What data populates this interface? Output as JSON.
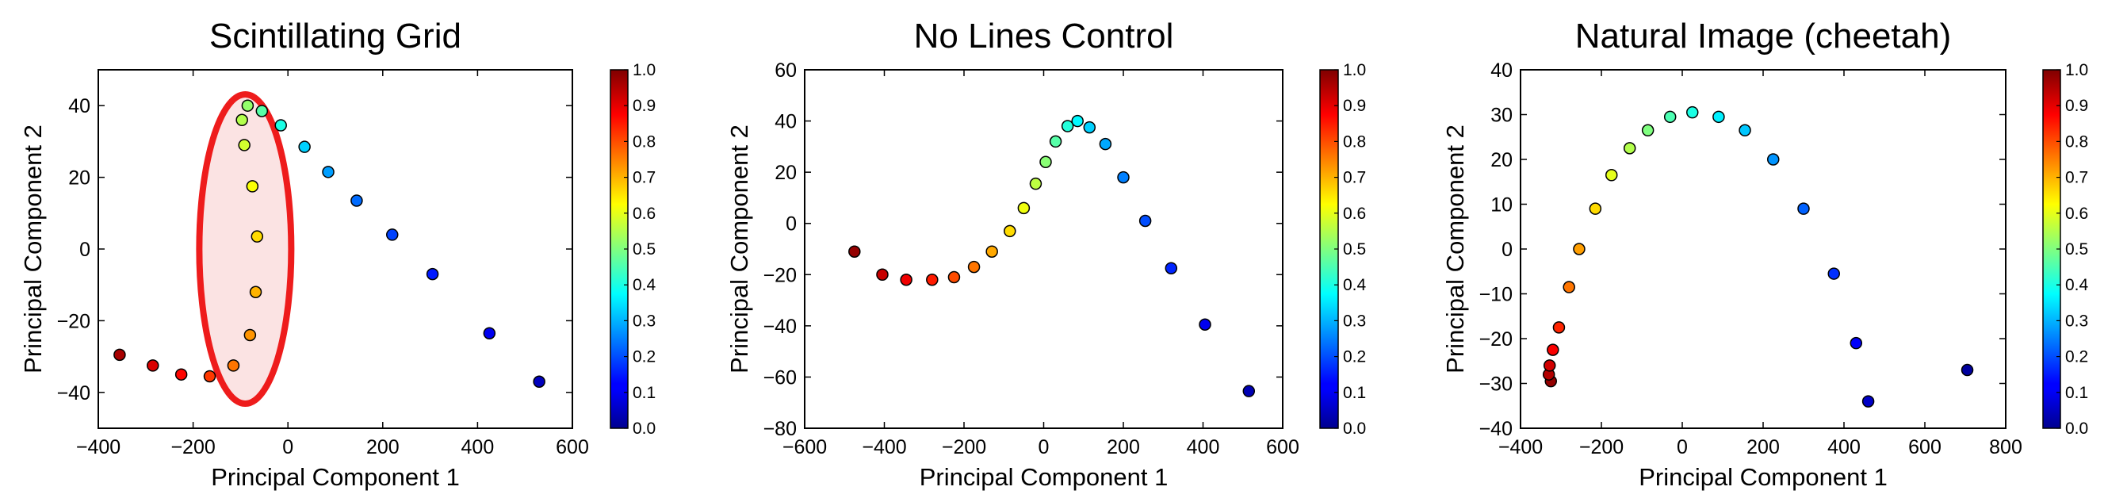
{
  "colormap": "jet",
  "chart_data": [
    {
      "type": "scatter",
      "title": "Scintillating Grid",
      "xlabel": "Principal Component 1",
      "ylabel": "Principal Component 2",
      "xlim": [
        -400,
        600
      ],
      "ylim": [
        -50,
        50
      ],
      "xticks": [
        -400,
        -200,
        0,
        200,
        400,
        600
      ],
      "yticks": [
        -40,
        -20,
        0,
        20,
        40
      ],
      "xtick_labels": [
        "−400",
        "−200",
        "0",
        "200",
        "400",
        "600"
      ],
      "ytick_labels": [
        "−40",
        "−20",
        "0",
        "20",
        "40"
      ],
      "colorbar": {
        "ticks": [
          "0.0",
          "0.1",
          "0.2",
          "0.3",
          "0.4",
          "0.5",
          "0.6",
          "0.7",
          "0.8",
          "0.9",
          "1.0"
        ]
      },
      "highlight_ellipse": {
        "center": [
          -90,
          0
        ],
        "color": "#ee1c1c",
        "fill": "#fbe3e3"
      },
      "points": [
        {
          "x": -355,
          "y": -29.5,
          "c": 0.96
        },
        {
          "x": -285,
          "y": -32.5,
          "c": 0.91
        },
        {
          "x": -225,
          "y": -35,
          "c": 0.87
        },
        {
          "x": -165,
          "y": -35.5,
          "c": 0.82
        },
        {
          "x": -115,
          "y": -32.5,
          "c": 0.76
        },
        {
          "x": -80,
          "y": -24,
          "c": 0.73
        },
        {
          "x": -68,
          "y": -12,
          "c": 0.7
        },
        {
          "x": -65,
          "y": 3.5,
          "c": 0.66
        },
        {
          "x": -75,
          "y": 17.5,
          "c": 0.62
        },
        {
          "x": -92,
          "y": 29,
          "c": 0.58
        },
        {
          "x": -97,
          "y": 36,
          "c": 0.55
        },
        {
          "x": -85,
          "y": 40,
          "c": 0.52
        },
        {
          "x": -55,
          "y": 38.5,
          "c": 0.46
        },
        {
          "x": -15,
          "y": 34.5,
          "c": 0.4
        },
        {
          "x": 35,
          "y": 28.5,
          "c": 0.33
        },
        {
          "x": 85,
          "y": 21.5,
          "c": 0.28
        },
        {
          "x": 145,
          "y": 13.5,
          "c": 0.23
        },
        {
          "x": 220,
          "y": 4,
          "c": 0.19
        },
        {
          "x": 305,
          "y": -7,
          "c": 0.15
        },
        {
          "x": 425,
          "y": -23.5,
          "c": 0.11
        },
        {
          "x": 530,
          "y": -37,
          "c": 0.06
        }
      ]
    },
    {
      "type": "scatter",
      "title": "No Lines Control",
      "xlabel": "Principal Component 1",
      "ylabel": "Principal Component 2",
      "xlim": [
        -600,
        600
      ],
      "ylim": [
        -80,
        60
      ],
      "xticks": [
        -600,
        -400,
        -200,
        0,
        200,
        400,
        600
      ],
      "yticks": [
        -80,
        -60,
        -40,
        -20,
        0,
        20,
        40,
        60
      ],
      "xtick_labels": [
        "−600",
        "−400",
        "−200",
        "0",
        "200",
        "400",
        "600"
      ],
      "ytick_labels": [
        "−80",
        "−60",
        "−40",
        "−20",
        "0",
        "20",
        "40",
        "60"
      ],
      "colorbar": {
        "ticks": [
          "0.0",
          "0.1",
          "0.2",
          "0.3",
          "0.4",
          "0.5",
          "0.6",
          "0.7",
          "0.8",
          "0.9",
          "1.0"
        ]
      },
      "points": [
        {
          "x": -475,
          "y": -11,
          "c": 0.98
        },
        {
          "x": -405,
          "y": -20,
          "c": 0.93
        },
        {
          "x": -345,
          "y": -22,
          "c": 0.89
        },
        {
          "x": -280,
          "y": -22,
          "c": 0.85
        },
        {
          "x": -225,
          "y": -21,
          "c": 0.8
        },
        {
          "x": -175,
          "y": -17,
          "c": 0.76
        },
        {
          "x": -130,
          "y": -11,
          "c": 0.71
        },
        {
          "x": -85,
          "y": -3,
          "c": 0.66
        },
        {
          "x": -50,
          "y": 6,
          "c": 0.61
        },
        {
          "x": -20,
          "y": 15.5,
          "c": 0.56
        },
        {
          "x": 5,
          "y": 24,
          "c": 0.51
        },
        {
          "x": 30,
          "y": 32,
          "c": 0.46
        },
        {
          "x": 60,
          "y": 38,
          "c": 0.41
        },
        {
          "x": 85,
          "y": 40,
          "c": 0.37
        },
        {
          "x": 115,
          "y": 37.5,
          "c": 0.33
        },
        {
          "x": 155,
          "y": 31,
          "c": 0.29
        },
        {
          "x": 200,
          "y": 18,
          "c": 0.25
        },
        {
          "x": 255,
          "y": 1,
          "c": 0.2
        },
        {
          "x": 320,
          "y": -17.5,
          "c": 0.16
        },
        {
          "x": 405,
          "y": -39.5,
          "c": 0.11
        },
        {
          "x": 515,
          "y": -65.5,
          "c": 0.05
        }
      ]
    },
    {
      "type": "scatter",
      "title": "Natural Image (cheetah)",
      "xlabel": "Principal Component 1",
      "ylabel": "Principal Component 2",
      "xlim": [
        -400,
        800
      ],
      "ylim": [
        -40,
        40
      ],
      "xticks": [
        -400,
        -200,
        0,
        200,
        400,
        600,
        800
      ],
      "yticks": [
        -40,
        -30,
        -20,
        -10,
        0,
        10,
        20,
        30,
        40
      ],
      "xtick_labels": [
        "−400",
        "−200",
        "0",
        "200",
        "400",
        "600",
        "800"
      ],
      "ytick_labels": [
        "−40",
        "−30",
        "−20",
        "−10",
        "0",
        "10",
        "20",
        "30",
        "40"
      ],
      "colorbar": {
        "ticks": [
          "0.0",
          "0.1",
          "0.2",
          "0.3",
          "0.4",
          "0.5",
          "0.6",
          "0.7",
          "0.8",
          "0.9",
          "1.0"
        ]
      },
      "points": [
        {
          "x": -325,
          "y": -29.5,
          "c": 0.98
        },
        {
          "x": -330,
          "y": -28,
          "c": 0.95
        },
        {
          "x": -328,
          "y": -26,
          "c": 0.92
        },
        {
          "x": -320,
          "y": -22.5,
          "c": 0.88
        },
        {
          "x": -305,
          "y": -17.5,
          "c": 0.84
        },
        {
          "x": -280,
          "y": -8.5,
          "c": 0.76
        },
        {
          "x": -255,
          "y": 0,
          "c": 0.72
        },
        {
          "x": -215,
          "y": 9,
          "c": 0.66
        },
        {
          "x": -175,
          "y": 16.5,
          "c": 0.6
        },
        {
          "x": -130,
          "y": 22.5,
          "c": 0.55
        },
        {
          "x": -85,
          "y": 26.5,
          "c": 0.5
        },
        {
          "x": -30,
          "y": 29.5,
          "c": 0.45
        },
        {
          "x": 25,
          "y": 30.5,
          "c": 0.4
        },
        {
          "x": 90,
          "y": 29.5,
          "c": 0.36
        },
        {
          "x": 155,
          "y": 26.5,
          "c": 0.32
        },
        {
          "x": 225,
          "y": 20,
          "c": 0.27
        },
        {
          "x": 300,
          "y": 9,
          "c": 0.22
        },
        {
          "x": 375,
          "y": -5.5,
          "c": 0.17
        },
        {
          "x": 430,
          "y": -21,
          "c": 0.12
        },
        {
          "x": 460,
          "y": -34,
          "c": 0.07
        },
        {
          "x": 705,
          "y": -27,
          "c": 0.03
        }
      ]
    }
  ]
}
